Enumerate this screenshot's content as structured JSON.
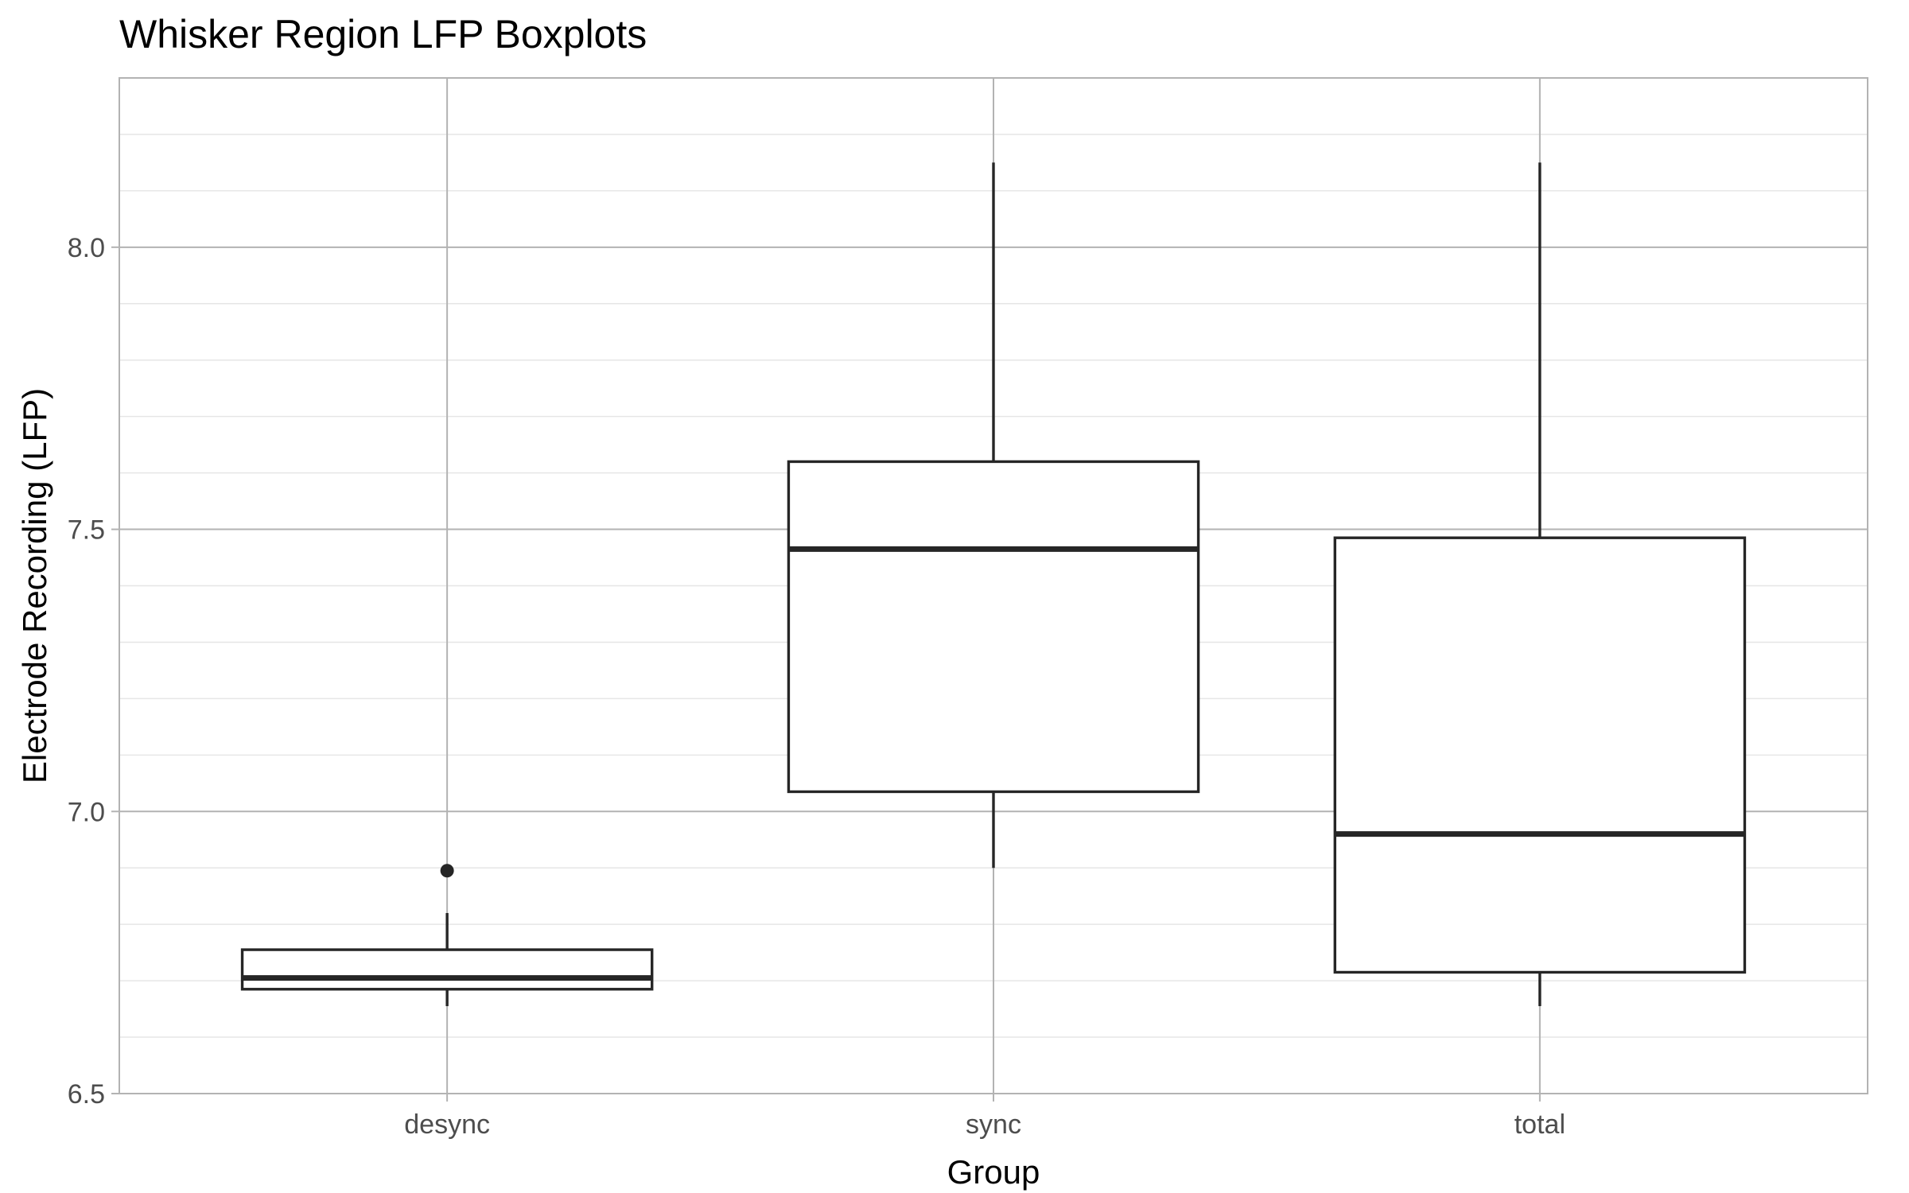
{
  "chart_data": {
    "type": "box",
    "title": "Whisker Region LFP Boxplots",
    "xlabel": "Group",
    "ylabel": "Electrode Recording (LFP)",
    "ylim": [
      6.5,
      8.3
    ],
    "yticks": [
      6.5,
      7.0,
      7.5,
      8.0
    ],
    "ytick_labels": [
      "6.5",
      "7.0",
      "7.5",
      "8.0"
    ],
    "minor_yticks": [
      6.6,
      6.7,
      6.8,
      6.9,
      7.1,
      7.2,
      7.3,
      7.4,
      7.6,
      7.7,
      7.8,
      7.9,
      8.1,
      8.2
    ],
    "categories": [
      "desync",
      "sync",
      "total"
    ],
    "boxes": [
      {
        "name": "desync",
        "whisker_low": 6.655,
        "q1": 6.685,
        "median": 6.705,
        "q3": 6.755,
        "whisker_high": 6.82,
        "outliers": [
          6.895
        ]
      },
      {
        "name": "sync",
        "whisker_low": 6.9,
        "q1": 7.035,
        "median": 7.465,
        "q3": 7.62,
        "whisker_high": 8.15,
        "outliers": []
      },
      {
        "name": "total",
        "whisker_low": 6.655,
        "q1": 6.715,
        "median": 6.96,
        "q3": 7.485,
        "whisker_high": 8.15,
        "outliers": []
      }
    ],
    "grid": true,
    "legend": "none"
  }
}
